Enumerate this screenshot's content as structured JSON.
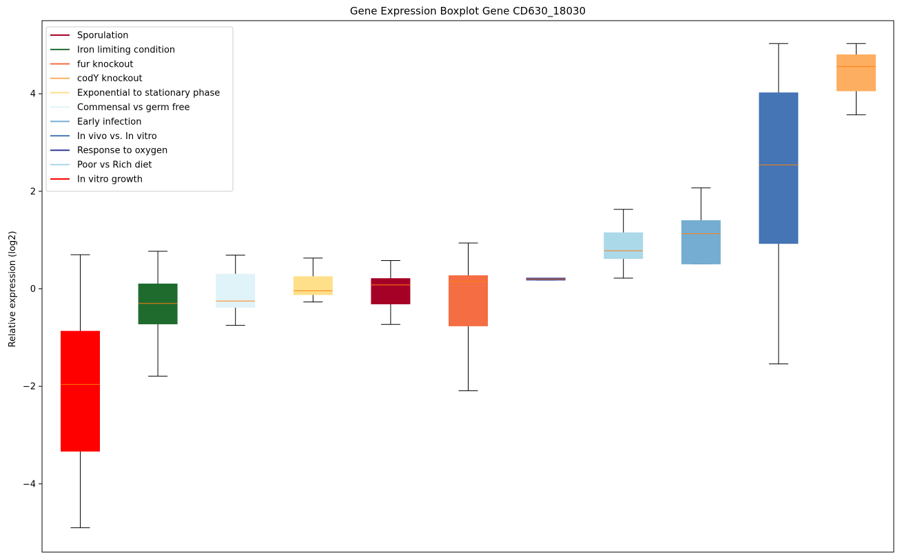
{
  "chart_data": {
    "type": "boxplot",
    "title": "Gene Expression Boxplot Gene CD630_18030",
    "xlabel": "",
    "ylabel": "Relative expression (log2)",
    "ylim": [
      -5.4,
      5.5
    ],
    "yticks": [
      -4,
      -2,
      0,
      2,
      4
    ],
    "ytick_labels": [
      "−4",
      "−2",
      "0",
      "2",
      "4"
    ],
    "grid": false,
    "legend_position": "top-left",
    "median_color": "#ff7f0e",
    "legend": [
      {
        "label": "Sporulation",
        "color": "#a50026"
      },
      {
        "label": "Iron limiting condition",
        "color": "#1f6b2e"
      },
      {
        "label": "fur knockout",
        "color": "#f46d43"
      },
      {
        "label": "codY knockout",
        "color": "#fdae61"
      },
      {
        "label": "Exponential to stationary phase",
        "color": "#fee08b"
      },
      {
        "label": "Commensal vs germ free",
        "color": "#e0f3f8"
      },
      {
        "label": "Early infection",
        "color": "#74add1"
      },
      {
        "label": "In vivo vs. In vitro",
        "color": "#4575b4"
      },
      {
        "label": "Response to oxygen",
        "color": "#313695"
      },
      {
        "label": "Poor vs Rich diet",
        "color": "#abd9e9"
      },
      {
        "label": "In vitro growth",
        "color": "#ff0000"
      }
    ],
    "boxes": [
      {
        "condition": "In vitro growth",
        "color": "#ff0000",
        "whisker_low": -4.9,
        "q1": -3.33,
        "median": -1.96,
        "q3": -0.87,
        "whisker_high": 0.7
      },
      {
        "condition": "Iron limiting condition",
        "color": "#1f6b2e",
        "whisker_low": -1.79,
        "q1": -0.72,
        "median": -0.3,
        "q3": 0.1,
        "whisker_high": 0.77
      },
      {
        "condition": "Commensal vs germ free",
        "color": "#e0f3f8",
        "whisker_low": -0.75,
        "q1": -0.38,
        "median": -0.25,
        "q3": 0.3,
        "whisker_high": 0.69
      },
      {
        "condition": "Exponential to stationary phase",
        "color": "#fee08b",
        "whisker_low": -0.27,
        "q1": -0.12,
        "median": -0.04,
        "q3": 0.25,
        "whisker_high": 0.63
      },
      {
        "condition": "Sporulation",
        "color": "#a50026",
        "whisker_low": -0.73,
        "q1": -0.31,
        "median": 0.08,
        "q3": 0.21,
        "whisker_high": 0.58
      },
      {
        "condition": "fur knockout",
        "color": "#f46d43",
        "whisker_low": -2.09,
        "q1": -0.76,
        "median": 0.15,
        "q3": 0.27,
        "whisker_high": 0.94
      },
      {
        "condition": "Response to oxygen",
        "color": "#313695",
        "whisker_low": 0.18,
        "q1": 0.18,
        "median": 0.2,
        "q3": 0.22,
        "whisker_high": 0.22
      },
      {
        "condition": "Poor vs Rich diet",
        "color": "#abd9e9",
        "whisker_low": 0.22,
        "q1": 0.62,
        "median": 0.78,
        "q3": 1.15,
        "whisker_high": 1.63
      },
      {
        "condition": "Early infection",
        "color": "#74add1",
        "whisker_low": 0.51,
        "q1": 0.51,
        "median": 1.13,
        "q3": 1.4,
        "whisker_high": 2.07
      },
      {
        "condition": "In vivo vs. In vitro",
        "color": "#4575b4",
        "whisker_low": -1.54,
        "q1": 0.93,
        "median": 2.54,
        "q3": 4.02,
        "whisker_high": 5.03
      },
      {
        "condition": "codY knockout",
        "color": "#fdae61",
        "whisker_low": 3.57,
        "q1": 4.06,
        "median": 4.56,
        "q3": 4.8,
        "whisker_high": 5.03
      }
    ]
  }
}
